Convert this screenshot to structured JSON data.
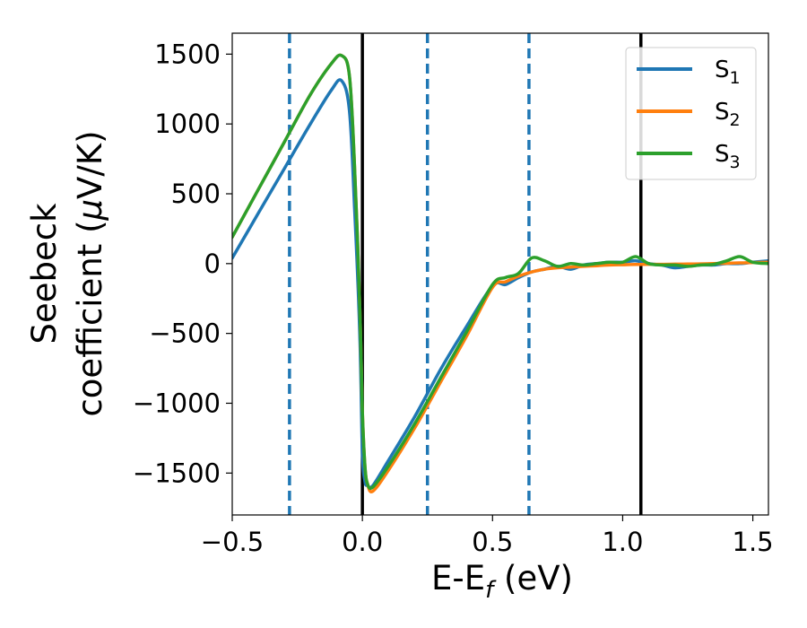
{
  "chart_data": {
    "type": "line",
    "title": "",
    "xlabel": "E-E",
    "xlabel_sub": "f",
    "xlabel_unit": " (eV)",
    "ylabel_line1": "Seebeck",
    "ylabel_line2_a": "coefficient  (",
    "ylabel_mu": "μ",
    "ylabel_line2_b": "V/K)",
    "xlim": [
      -0.5,
      1.56
    ],
    "ylim": [
      -1800,
      1650
    ],
    "x_ticks": [
      -0.5,
      0.0,
      0.5,
      1.0,
      1.5
    ],
    "x_tick_labels": [
      "−0.5",
      "0.0",
      "0.5",
      "1.0",
      "1.5"
    ],
    "y_ticks": [
      1500,
      1000,
      500,
      0,
      -500,
      -1000,
      -1500
    ],
    "y_tick_labels": [
      "1500",
      "1000",
      "500",
      "0",
      "−500",
      "−1000",
      "−1500"
    ],
    "grid": false,
    "legend_position": "top-right",
    "vlines_solid": [
      0.0,
      1.07
    ],
    "vlines_dashed": [
      -0.28,
      0.25,
      0.64
    ],
    "vline_solid_color": "#000000",
    "vline_dashed_color": "#1f77b4",
    "series": [
      {
        "name": "S",
        "sub": "1",
        "color": "#1f77b4",
        "x": [
          -0.5,
          -0.4,
          -0.3,
          -0.2,
          -0.12,
          -0.08,
          -0.05,
          -0.03,
          -0.01,
          0.0,
          0.01,
          0.02,
          0.04,
          0.1,
          0.2,
          0.3,
          0.4,
          0.5,
          0.55,
          0.6,
          0.65,
          0.7,
          0.75,
          0.8,
          0.85,
          0.9,
          0.95,
          1.0,
          1.05,
          1.1,
          1.15,
          1.2,
          1.25,
          1.3,
          1.35,
          1.4,
          1.45,
          1.5,
          1.56
        ],
        "y": [
          40,
          360,
          680,
          1000,
          1240,
          1310,
          1100,
          400,
          -500,
          -1350,
          -1560,
          -1590,
          -1590,
          -1410,
          -1100,
          -760,
          -450,
          -160,
          -150,
          -100,
          -60,
          -40,
          -20,
          -40,
          -10,
          0,
          10,
          10,
          20,
          0,
          -10,
          -30,
          -20,
          -10,
          -10,
          0,
          0,
          10,
          20
        ]
      },
      {
        "name": "S",
        "sub": "2",
        "color": "#ff7f0e",
        "x": [
          -0.5,
          -0.4,
          -0.3,
          -0.2,
          -0.12,
          -0.08,
          -0.05,
          -0.03,
          -0.01,
          0.0,
          0.01,
          0.02,
          0.04,
          0.1,
          0.2,
          0.3,
          0.4,
          0.5,
          0.55,
          0.6,
          0.65,
          0.7,
          0.75,
          0.8,
          0.85,
          0.9,
          0.95,
          1.0,
          1.05,
          1.1,
          1.15,
          1.2,
          1.25,
          1.3,
          1.35,
          1.4,
          1.45,
          1.5,
          1.56
        ],
        "y": [
          190,
          530,
          870,
          1210,
          1430,
          1490,
          1350,
          700,
          -300,
          -1050,
          -1450,
          -1580,
          -1630,
          -1480,
          -1180,
          -850,
          -520,
          -170,
          -130,
          -90,
          -60,
          -40,
          -30,
          -25,
          -20,
          -15,
          -10,
          -8,
          -6,
          -5,
          -5,
          -4,
          -3,
          -2,
          0,
          2,
          5,
          8,
          10
        ]
      },
      {
        "name": "S",
        "sub": "3",
        "color": "#2ca02c",
        "x": [
          -0.5,
          -0.4,
          -0.3,
          -0.2,
          -0.12,
          -0.08,
          -0.05,
          -0.03,
          -0.01,
          0.0,
          0.01,
          0.02,
          0.04,
          0.1,
          0.2,
          0.3,
          0.4,
          0.5,
          0.55,
          0.6,
          0.65,
          0.7,
          0.75,
          0.8,
          0.85,
          0.9,
          0.95,
          1.0,
          1.05,
          1.1,
          1.15,
          1.2,
          1.25,
          1.3,
          1.35,
          1.4,
          1.45,
          1.5,
          1.56
        ],
        "y": [
          190,
          530,
          870,
          1210,
          1430,
          1490,
          1350,
          700,
          -300,
          -1050,
          -1450,
          -1580,
          -1600,
          -1450,
          -1150,
          -820,
          -490,
          -150,
          -100,
          -70,
          40,
          20,
          -20,
          0,
          -10,
          0,
          10,
          10,
          50,
          0,
          -10,
          -10,
          -20,
          -10,
          -5,
          20,
          50,
          10,
          0
        ]
      }
    ]
  }
}
